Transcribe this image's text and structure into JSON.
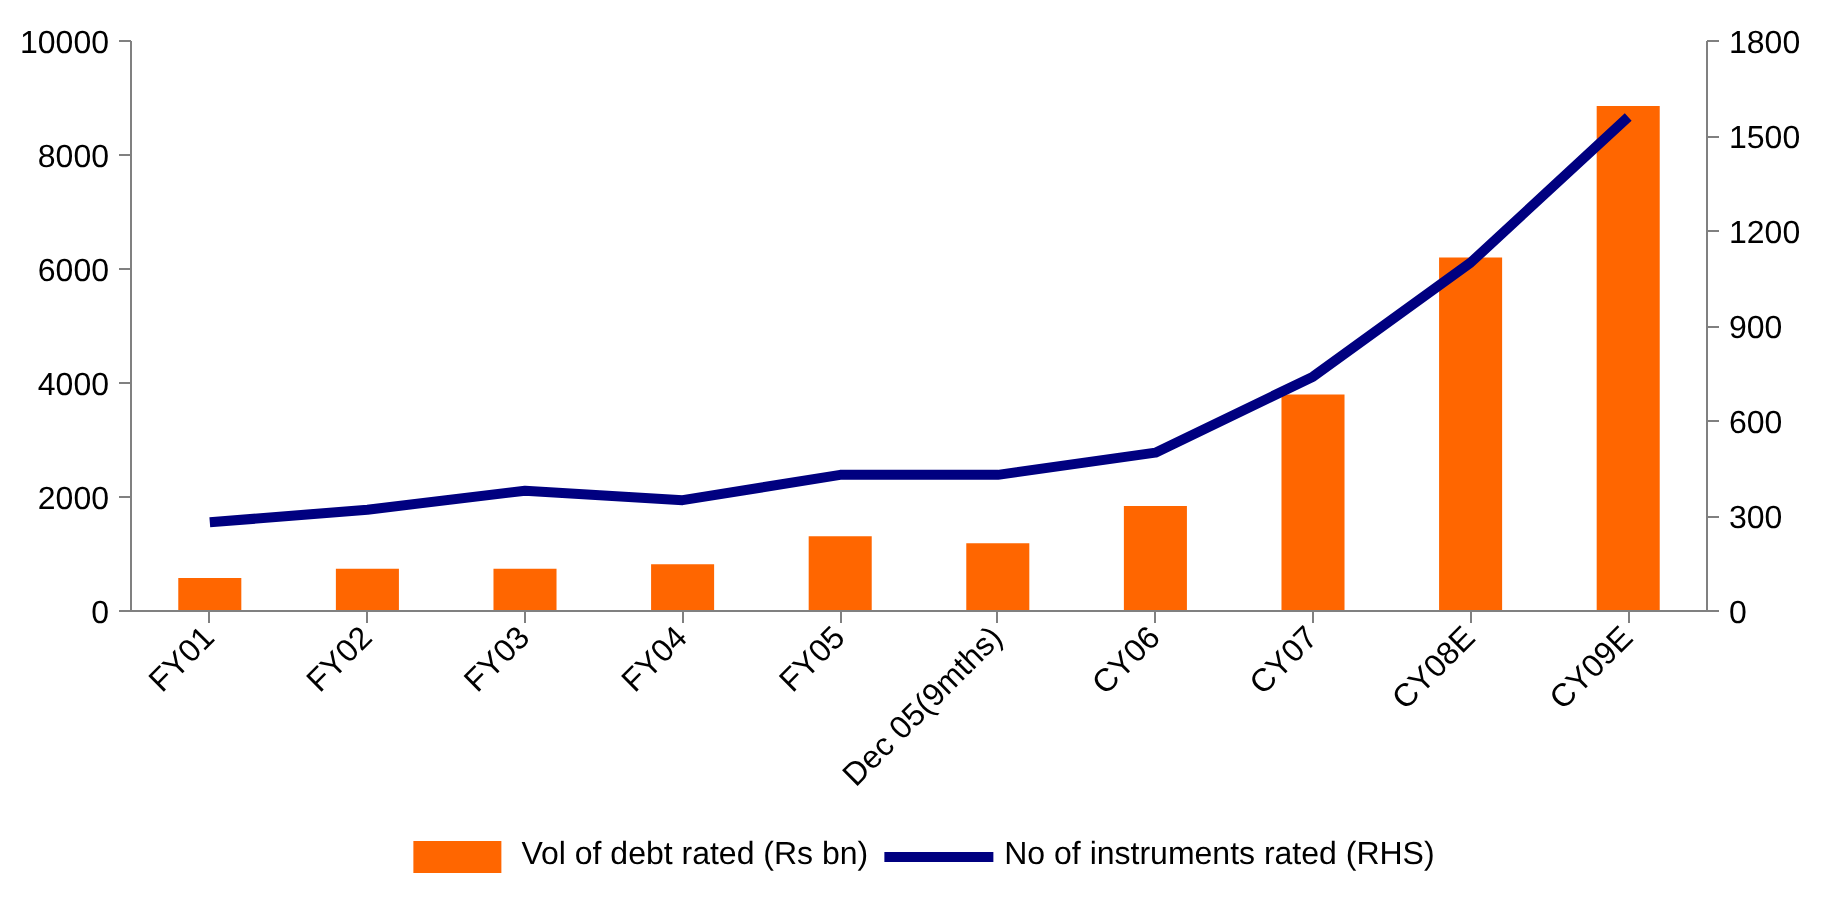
{
  "chart_data": {
    "type": "bar",
    "categories": [
      "FY01",
      "FY02",
      "FY03",
      "FY04",
      "FY05",
      "Dec 05(9mths)",
      "CY06",
      "CY07",
      "CY08E",
      "CY09E"
    ],
    "series": [
      {
        "name": "Vol of debt rated (Rs bn)",
        "color": "#ff6600",
        "values": [
          580,
          740,
          740,
          820,
          1310,
          1190,
          1840,
          3800,
          6200,
          8860
        ]
      },
      {
        "name": "No of instruments rated (RHS)",
        "type": "line",
        "axis": "y2",
        "color": "#000080",
        "values": [
          280,
          320,
          380,
          350,
          430,
          430,
          500,
          740,
          1100,
          1560
        ]
      }
    ],
    "ylim": [
      0,
      10000
    ],
    "yticks": [
      0,
      2000,
      4000,
      6000,
      8000,
      10000
    ],
    "y2lim": [
      0,
      1800
    ],
    "y2ticks": [
      0,
      300,
      600,
      900,
      1200,
      1500,
      1800
    ],
    "grid": false,
    "legend": "bottom",
    "marker": "none",
    "line_style": "solid"
  }
}
